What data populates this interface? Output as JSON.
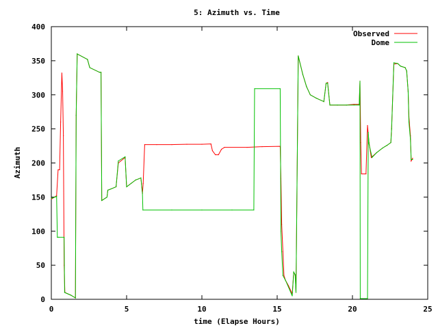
{
  "chart_data": {
    "type": "line",
    "title": "5: Azimuth vs. Time",
    "xlabel": "time (Elapse Hours)",
    "ylabel": "Azimuth",
    "xlim": [
      0,
      25
    ],
    "ylim": [
      0,
      400
    ],
    "xticks": [
      0,
      5,
      10,
      15,
      20,
      25
    ],
    "yticks": [
      0,
      50,
      100,
      150,
      200,
      250,
      300,
      350,
      400
    ],
    "grid": false,
    "legend_position": "top-right",
    "series": [
      {
        "name": "Observed",
        "color": "#ff0000",
        "points": [
          [
            0.0,
            147
          ],
          [
            0.35,
            152
          ],
          [
            0.45,
            190
          ],
          [
            0.55,
            190
          ],
          [
            0.62,
            260
          ],
          [
            0.7,
            332
          ],
          [
            0.75,
            305
          ],
          [
            0.8,
            240
          ],
          [
            0.85,
            50
          ],
          [
            0.9,
            10
          ],
          [
            1.3,
            6
          ],
          [
            1.6,
            2
          ],
          [
            1.65,
            270
          ],
          [
            1.72,
            360
          ],
          [
            2.4,
            352
          ],
          [
            2.55,
            340
          ],
          [
            3.2,
            333
          ],
          [
            3.3,
            333
          ],
          [
            3.35,
            145
          ],
          [
            3.7,
            150
          ],
          [
            3.75,
            160
          ],
          [
            4.3,
            165
          ],
          [
            4.45,
            200
          ],
          [
            4.9,
            208
          ],
          [
            5.0,
            165
          ],
          [
            5.3,
            170
          ],
          [
            5.6,
            175
          ],
          [
            5.95,
            178
          ],
          [
            6.05,
            155
          ],
          [
            6.1,
            170
          ],
          [
            6.2,
            227
          ],
          [
            7.0,
            227
          ],
          [
            8.0,
            227
          ],
          [
            9.0,
            227.5
          ],
          [
            10.0,
            227.5
          ],
          [
            10.6,
            228
          ],
          [
            10.7,
            218
          ],
          [
            10.9,
            212
          ],
          [
            11.1,
            212
          ],
          [
            11.3,
            220
          ],
          [
            11.5,
            223
          ],
          [
            13.0,
            223
          ],
          [
            14.0,
            224
          ],
          [
            15.2,
            224.5
          ],
          [
            15.25,
            177
          ],
          [
            15.3,
            110
          ],
          [
            15.38,
            70
          ],
          [
            15.45,
            35
          ],
          [
            15.55,
            28
          ],
          [
            15.75,
            20
          ],
          [
            16.0,
            8
          ],
          [
            16.1,
            40
          ],
          [
            16.2,
            35
          ],
          [
            16.25,
            10
          ],
          [
            16.4,
            357
          ],
          [
            16.7,
            330
          ],
          [
            16.95,
            312
          ],
          [
            17.2,
            300
          ],
          [
            17.6,
            295
          ],
          [
            18.1,
            290
          ],
          [
            18.25,
            317
          ],
          [
            18.35,
            318
          ],
          [
            18.5,
            285
          ],
          [
            19.0,
            285
          ],
          [
            19.6,
            285
          ],
          [
            20.1,
            286
          ],
          [
            20.45,
            286
          ],
          [
            20.5,
            320
          ],
          [
            20.55,
            230
          ],
          [
            20.6,
            184
          ],
          [
            20.8,
            184
          ],
          [
            20.9,
            184
          ],
          [
            21.0,
            255
          ],
          [
            21.1,
            230
          ],
          [
            21.25,
            208
          ],
          [
            21.6,
            215
          ],
          [
            22.0,
            222
          ],
          [
            22.3,
            226
          ],
          [
            22.55,
            230
          ],
          [
            22.6,
            250
          ],
          [
            22.75,
            345
          ],
          [
            23.0,
            346
          ],
          [
            23.2,
            342
          ],
          [
            23.5,
            340
          ],
          [
            23.6,
            335
          ],
          [
            23.7,
            305
          ],
          [
            23.75,
            268
          ],
          [
            23.85,
            240
          ],
          [
            23.9,
            203
          ],
          [
            24.0,
            207
          ]
        ]
      },
      {
        "name": "Dome",
        "color": "#00c000",
        "points": [
          [
            0.0,
            148
          ],
          [
            0.35,
            151
          ],
          [
            0.4,
            91
          ],
          [
            0.5,
            91
          ],
          [
            0.85,
            91
          ],
          [
            0.88,
            10
          ],
          [
            1.3,
            6
          ],
          [
            1.6,
            2
          ],
          [
            1.65,
            270
          ],
          [
            1.72,
            360
          ],
          [
            2.4,
            352
          ],
          [
            2.55,
            340
          ],
          [
            3.2,
            333
          ],
          [
            3.3,
            333
          ],
          [
            3.35,
            145
          ],
          [
            3.7,
            150
          ],
          [
            3.75,
            160
          ],
          [
            4.3,
            165
          ],
          [
            4.45,
            203
          ],
          [
            4.9,
            209
          ],
          [
            5.0,
            165
          ],
          [
            5.3,
            170
          ],
          [
            5.6,
            175
          ],
          [
            5.95,
            178
          ],
          [
            6.05,
            156
          ],
          [
            6.08,
            131
          ],
          [
            8.0,
            131
          ],
          [
            10.0,
            131
          ],
          [
            12.0,
            131
          ],
          [
            13.45,
            131
          ],
          [
            13.5,
            309
          ],
          [
            15.2,
            309
          ],
          [
            15.25,
            100
          ],
          [
            15.3,
            70
          ],
          [
            15.38,
            35
          ],
          [
            15.55,
            28
          ],
          [
            15.75,
            18
          ],
          [
            16.0,
            5
          ],
          [
            16.1,
            40
          ],
          [
            16.2,
            36
          ],
          [
            16.25,
            10
          ],
          [
            16.4,
            357
          ],
          [
            16.7,
            330
          ],
          [
            16.95,
            312
          ],
          [
            17.2,
            300
          ],
          [
            17.6,
            295
          ],
          [
            18.1,
            290
          ],
          [
            18.25,
            317
          ],
          [
            18.35,
            317
          ],
          [
            18.5,
            285
          ],
          [
            19.0,
            285
          ],
          [
            19.6,
            285
          ],
          [
            20.1,
            285
          ],
          [
            20.45,
            285
          ],
          [
            20.5,
            320
          ],
          [
            20.52,
            1
          ],
          [
            21.0,
            1
          ],
          [
            21.05,
            245
          ],
          [
            21.1,
            228
          ],
          [
            21.3,
            208
          ],
          [
            21.6,
            215
          ],
          [
            22.0,
            222
          ],
          [
            22.3,
            226
          ],
          [
            22.55,
            230
          ],
          [
            22.6,
            250
          ],
          [
            22.75,
            347
          ],
          [
            23.0,
            346
          ],
          [
            23.2,
            342
          ],
          [
            23.5,
            340
          ],
          [
            23.6,
            335
          ],
          [
            23.7,
            305
          ],
          [
            23.75,
            260
          ],
          [
            23.85,
            235
          ],
          [
            23.9,
            205
          ],
          [
            24.0,
            205
          ]
        ]
      }
    ]
  }
}
